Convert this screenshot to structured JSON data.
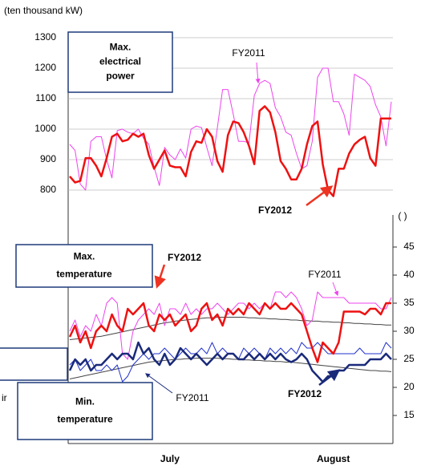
{
  "chart_data": [
    {
      "type": "line",
      "axis_label": "(ten thousand kW)",
      "ylim": [
        800,
        1300
      ],
      "yticks": [
        800,
        900,
        1000,
        1100,
        1200,
        1300
      ],
      "grid": true,
      "series": [
        {
          "color": "#ee44ee",
          "width": 1,
          "values": [
            950,
            930,
            820,
            800,
            960,
            975,
            975,
            900,
            840,
            995,
            1000,
            990,
            985,
            1000,
            970,
            950,
            875,
            815,
            940,
            915,
            900,
            935,
            905,
            1000,
            1010,
            1005,
            940,
            880,
            1005,
            1130,
            1130,
            1050,
            960,
            960,
            955,
            1110,
            1150,
            1160,
            1150,
            1070,
            1040,
            990,
            980,
            920,
            870,
            880,
            960,
            1170,
            1200,
            1200,
            1090,
            1090,
            1050,
            980,
            1180,
            1170,
            1160,
            1140,
            1080,
            1040,
            945,
            1090
          ]
        },
        {
          "color": "#ee1111",
          "width": 2.5,
          "values": [
            845,
            825,
            830,
            905,
            905,
            880,
            845,
            905,
            975,
            985,
            960,
            965,
            985,
            975,
            985,
            915,
            870,
            900,
            930,
            880,
            875,
            875,
            845,
            925,
            960,
            955,
            1000,
            975,
            895,
            860,
            980,
            1025,
            1020,
            990,
            945,
            885,
            1060,
            1075,
            1055,
            990,
            895,
            870,
            835,
            835,
            870,
            950,
            1010,
            1025,
            885,
            800,
            780,
            870,
            870,
            920,
            950,
            965,
            975,
            905,
            880,
            1035,
            1035,
            1035
          ]
        }
      ],
      "annotations": [
        {
          "lines": [
            "Max.",
            "electrical",
            "power"
          ]
        },
        {
          "text": "FY2011",
          "color": "#ee44ee"
        },
        {
          "text": "FY2012",
          "color": "#ee3322"
        }
      ]
    },
    {
      "type": "line",
      "axis_label": "(    )",
      "categories": [
        null,
        null,
        null,
        null,
        null,
        null,
        null,
        null,
        null,
        null,
        null,
        null,
        null,
        null,
        null,
        null,
        null,
        null,
        null,
        "July",
        null,
        null,
        null,
        null,
        null,
        null,
        null,
        null,
        null,
        null,
        null,
        null,
        null,
        null,
        null,
        null,
        null,
        null,
        null,
        null,
        null,
        null,
        null,
        null,
        null,
        null,
        null,
        null,
        null,
        null,
        "August",
        null,
        null,
        null,
        null,
        null,
        null,
        null,
        null,
        null,
        null,
        null
      ],
      "ylim": [
        15,
        45
      ],
      "yticks": [
        15,
        20,
        25,
        30,
        35,
        40,
        45
      ],
      "series": [
        {
          "color": "#444444",
          "width": 1,
          "values": [
            28.5,
            28.6,
            28.7,
            28.8,
            28.9,
            29,
            29.1,
            29.3,
            29.5,
            29.7,
            29.9,
            30.1,
            30.3,
            30.5,
            30.7,
            30.9,
            31.1,
            31.3,
            31.5,
            31.6,
            31.8,
            31.9,
            32,
            32.1,
            32.2,
            32.3,
            32.4,
            32.4,
            32.5,
            32.5,
            32.5,
            32.5,
            32.5,
            32.5,
            32.4,
            32.4,
            32.3,
            32.3,
            32.2,
            32.2,
            32.1,
            32.1,
            32,
            32,
            31.9,
            31.9,
            31.8,
            31.8,
            31.7,
            31.7,
            31.6,
            31.6,
            31.5,
            31.5,
            31.4,
            31.4,
            31.3,
            31.3,
            31.2,
            31.2,
            31.1,
            31.1
          ]
        },
        {
          "color": "#444444",
          "width": 1,
          "values": [
            21.5,
            21.7,
            21.9,
            22.1,
            22.3,
            22.5,
            22.7,
            22.9,
            23.1,
            23.3,
            23.5,
            23.7,
            23.9,
            24.1,
            24.3,
            24.5,
            24.6,
            24.7,
            24.8,
            24.9,
            25,
            25,
            25.1,
            25.1,
            25.2,
            25.2,
            25.2,
            25.2,
            25.2,
            25.1,
            25.1,
            25,
            25,
            24.9,
            24.9,
            24.8,
            24.8,
            24.7,
            24.7,
            24.6,
            24.6,
            24.5,
            24.5,
            24.4,
            24.3,
            24.2,
            24.1,
            24,
            23.9,
            23.8,
            23.7,
            23.6,
            23.5,
            23.4,
            23.3,
            23.2,
            23.1,
            23,
            23,
            22.9,
            22.9,
            22.8
          ]
        },
        {
          "color": "#ee44ee",
          "width": 1,
          "values": [
            30,
            32,
            29,
            31,
            30,
            33,
            31,
            35,
            36,
            35,
            26,
            25,
            30,
            32,
            33,
            34,
            33,
            35,
            31,
            34,
            34,
            33,
            35,
            33,
            34,
            33,
            34,
            34,
            35,
            34,
            33,
            34,
            35,
            35,
            34,
            35,
            34,
            35,
            34,
            37,
            37,
            36,
            37,
            36,
            34,
            31,
            32,
            37,
            36,
            36,
            36,
            36,
            36,
            35,
            35,
            35,
            35,
            35,
            35,
            34,
            34,
            36
          ]
        },
        {
          "color": "#2233cc",
          "width": 1,
          "values": [
            24,
            25,
            23,
            24,
            25,
            23,
            23,
            24,
            23,
            24,
            21,
            22,
            24,
            25,
            26,
            25,
            26,
            26,
            27,
            26,
            25,
            26,
            27,
            26,
            26,
            27,
            26,
            28,
            26,
            27,
            26,
            26,
            25,
            27,
            26,
            27,
            26,
            25,
            27,
            26,
            27,
            26,
            27,
            26,
            28,
            27,
            27,
            28,
            27,
            26,
            26,
            26,
            26,
            26,
            26,
            27,
            26,
            26,
            26,
            26,
            28,
            27
          ]
        },
        {
          "color": "#ee1111",
          "width": 2.5,
          "values": [
            29,
            31,
            28,
            30,
            27,
            30,
            31,
            30,
            33,
            31,
            30,
            34,
            33,
            34,
            35,
            31,
            30,
            33,
            32,
            33,
            31,
            32,
            33,
            30,
            31,
            34,
            35,
            32,
            33,
            31,
            34,
            33,
            34,
            33,
            35,
            34,
            33,
            35,
            34,
            35,
            34,
            34,
            35,
            34,
            33,
            30,
            27,
            24.5,
            28,
            27,
            26,
            28,
            33.5,
            33.5,
            33.5,
            33.5,
            33,
            34,
            34,
            33,
            35,
            35
          ]
        },
        {
          "color": "#1a2a7a",
          "width": 2.5,
          "values": [
            23,
            25,
            24,
            25,
            23,
            24,
            24,
            25,
            26,
            25,
            26,
            26,
            25,
            28,
            26,
            27,
            25,
            24,
            26,
            24,
            25,
            27,
            26,
            25,
            26,
            25,
            24,
            25,
            26,
            25,
            26,
            26,
            25,
            25,
            26,
            25,
            26,
            25,
            26,
            25,
            26,
            25,
            24.5,
            25,
            26,
            25,
            23,
            22,
            21,
            22,
            22,
            23,
            23,
            24,
            24,
            24,
            24,
            25,
            25,
            25,
            26,
            25
          ]
        }
      ],
      "annotations": [
        {
          "lines": [
            "Max.",
            "temperature"
          ]
        },
        {
          "text": "FY2012",
          "color": "#ee3322"
        },
        {
          "text": "FY2011",
          "color": "#ee44ee"
        },
        {
          "text": "FY2011",
          "color": "#1a2a7a"
        },
        {
          "text": "FY2012",
          "color": "#1a2a7a"
        },
        {
          "lines": [
            "Min.",
            "temperature"
          ]
        },
        {
          "text": "ir"
        }
      ]
    }
  ]
}
